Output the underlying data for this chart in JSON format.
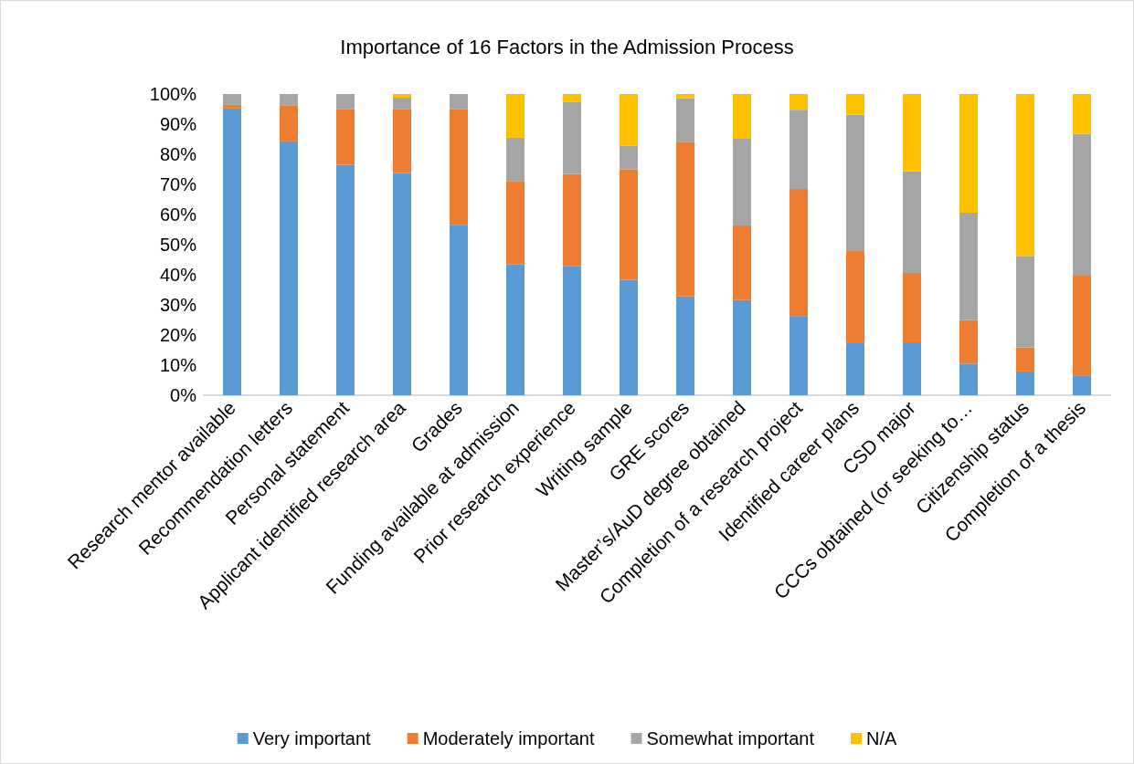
{
  "chart_data": {
    "type": "bar",
    "title": "Importance of 16 Factors in the Admission Process",
    "categories": [
      "Research mentor available",
      "Recommendation letters",
      "Personal statement",
      "Applicant identified research area",
      "Grades",
      "Funding available at admission",
      "Prior research experience",
      "Writing sample",
      "GRE scores",
      "Master’s/AuD degree obtained",
      "Completion of a research project",
      "Identified career plans",
      "CSD major",
      "CCCs obtained (or seeking to…",
      "Citizenship status",
      "Completion of a thesis"
    ],
    "stacked": true,
    "series": [
      {
        "name": "Very important",
        "color": "#5b9bd5",
        "values": [
          95.2,
          84.3,
          76.5,
          73.8,
          56.6,
          43.4,
          42.8,
          38.3,
          32.8,
          31.6,
          26.3,
          17.3,
          17.6,
          10.5,
          7.9,
          6.6
        ]
      },
      {
        "name": "Moderately important",
        "color": "#ed7d31",
        "values": [
          1.2,
          11.8,
          18.4,
          21.1,
          38.3,
          27.7,
          30.7,
          36.7,
          51.4,
          24.8,
          42.2,
          30.8,
          23.0,
          14.5,
          8.0,
          33.1
        ]
      },
      {
        "name": "Somewhat important",
        "color": "#a5a5a5",
        "values": [
          3.6,
          3.9,
          5.1,
          3.9,
          5.1,
          14.4,
          23.8,
          7.8,
          14.4,
          29.0,
          26.3,
          45.1,
          33.7,
          35.6,
          30.3,
          47.1
        ]
      },
      {
        "name": "N/A",
        "color": "#ffc000",
        "values": [
          0,
          0,
          0,
          1.2,
          0,
          14.5,
          2.7,
          17.2,
          1.4,
          14.6,
          5.2,
          6.8,
          25.7,
          39.4,
          53.8,
          13.2
        ]
      }
    ],
    "ylim": [
      0,
      100
    ],
    "yticks": [
      {
        "value": 0,
        "label": "0%"
      },
      {
        "value": 10,
        "label": "10%"
      },
      {
        "value": 20,
        "label": "20%"
      },
      {
        "value": 30,
        "label": "30%"
      },
      {
        "value": 40,
        "label": "40%"
      },
      {
        "value": 50,
        "label": "50%"
      },
      {
        "value": 60,
        "label": "60%"
      },
      {
        "value": 70,
        "label": "70%"
      },
      {
        "value": 80,
        "label": "80%"
      },
      {
        "value": 90,
        "label": "90%"
      },
      {
        "value": 100,
        "label": "100%"
      }
    ],
    "grid": false,
    "legend": "bottom"
  }
}
